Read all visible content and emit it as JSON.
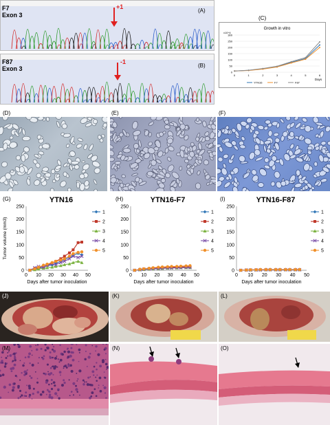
{
  "panels": {
    "A": {
      "label": "(A)",
      "sample": "F7",
      "exon": "Exon 3",
      "mutation": "+1"
    },
    "B": {
      "label": "(B)",
      "sample": "F87",
      "exon": "Exon 3",
      "mutation": "-1"
    },
    "C": {
      "label": "(C)"
    },
    "D": {
      "label": "(D)"
    },
    "E": {
      "label": "(E)"
    },
    "F": {
      "label": "(F)"
    },
    "G": {
      "label": "(G)"
    },
    "H": {
      "label": "(H)"
    },
    "I": {
      "label": "(I)"
    },
    "J": {
      "label": "(J)"
    },
    "K": {
      "label": "(K)"
    },
    "L": {
      "label": "(L)"
    },
    "M": {
      "label": "(M)"
    },
    "N": {
      "label": "(N)"
    },
    "O": {
      "label": "(O)"
    }
  },
  "colors": {
    "s1": "#2e75b6",
    "s2": "#c0392b",
    "s3": "#7cb342",
    "s4": "#7b4fa8",
    "s5": "#f0902a"
  },
  "chart_data": [
    {
      "type": "line",
      "title": "Growth in vitro",
      "unit_label": "x10^4",
      "xlabel": "Days",
      "x": [
        0,
        1,
        2,
        3,
        4,
        5,
        6
      ],
      "ylim": [
        0,
        300
      ],
      "yticks": [
        0,
        50,
        100,
        150,
        200,
        250,
        300
      ],
      "series": [
        {
          "name": "YTN16",
          "values": [
            10,
            15,
            28,
            45,
            80,
            110,
            220
          ]
        },
        {
          "name": "F7",
          "values": [
            10,
            14,
            25,
            42,
            75,
            105,
            200
          ]
        },
        {
          "name": "F87",
          "values": [
            10,
            16,
            30,
            48,
            85,
            118,
            245
          ]
        }
      ]
    },
    {
      "type": "line",
      "title": "YTN16",
      "ylabel": "Tumor volume (mm3)",
      "xlabel": "Days after tumor inoculation",
      "xlim": [
        0,
        50
      ],
      "ylim": [
        0,
        250
      ],
      "xticks": [
        0,
        10,
        20,
        30,
        40,
        50
      ],
      "yticks": [
        0,
        50,
        100,
        150,
        200,
        250
      ],
      "x": [
        3,
        7,
        10,
        14,
        17,
        21,
        24,
        28,
        31,
        35,
        38,
        42,
        45
      ],
      "series": [
        {
          "name": "1",
          "values": [
            0,
            5,
            8,
            12,
            18,
            20,
            28,
            35,
            42,
            50,
            58,
            66,
            60
          ]
        },
        {
          "name": "2",
          "values": [
            0,
            8,
            10,
            15,
            20,
            28,
            35,
            45,
            55,
            68,
            80,
            108,
            110
          ]
        },
        {
          "name": "3",
          "values": [
            0,
            2,
            5,
            8,
            10,
            12,
            15,
            18,
            22,
            25,
            30,
            35,
            30
          ]
        },
        {
          "name": "4",
          "values": [
            0,
            10,
            15,
            12,
            20,
            25,
            22,
            30,
            35,
            45,
            55,
            50,
            55
          ]
        },
        {
          "name": "5",
          "values": [
            0,
            6,
            12,
            20,
            24,
            30,
            35,
            40,
            45,
            55,
            65,
            70,
            72
          ]
        }
      ]
    },
    {
      "type": "line",
      "title": "YTN16-F7",
      "xlabel": "Days after tumor inoculation",
      "xlim": [
        0,
        50
      ],
      "ylim": [
        0,
        250
      ],
      "xticks": [
        0,
        10,
        20,
        30,
        40,
        50
      ],
      "yticks": [
        0,
        50,
        100,
        150,
        200,
        250
      ],
      "x": [
        3,
        7,
        10,
        14,
        17,
        21,
        24,
        28,
        31,
        35,
        38,
        42,
        45
      ],
      "series": [
        {
          "name": "1",
          "values": [
            0,
            2,
            3,
            5,
            6,
            7,
            8,
            9,
            10,
            10,
            11,
            12,
            12
          ]
        },
        {
          "name": "2",
          "values": [
            0,
            3,
            5,
            6,
            8,
            9,
            10,
            11,
            12,
            12,
            13,
            14,
            14
          ]
        },
        {
          "name": "3",
          "values": [
            0,
            2,
            3,
            4,
            5,
            6,
            7,
            8,
            9,
            9,
            10,
            10,
            10
          ]
        },
        {
          "name": "4",
          "values": [
            0,
            2,
            4,
            5,
            6,
            7,
            8,
            9,
            9,
            10,
            10,
            11,
            11
          ]
        },
        {
          "name": "5",
          "values": [
            0,
            4,
            6,
            8,
            10,
            12,
            13,
            14,
            15,
            15,
            16,
            17,
            18
          ]
        }
      ]
    },
    {
      "type": "line",
      "title": "YTN16-F87",
      "xlabel": "Days after tumor inoculation",
      "xlim": [
        0,
        50
      ],
      "ylim": [
        0,
        250
      ],
      "xticks": [
        0,
        10,
        20,
        30,
        40,
        50
      ],
      "yticks": [
        0,
        50,
        100,
        150,
        200,
        250
      ],
      "x": [
        3,
        7,
        10,
        14,
        17,
        21,
        24,
        28,
        31,
        35,
        38,
        42,
        45
      ],
      "series": [
        {
          "name": "1",
          "values": [
            0,
            1,
            2,
            2,
            2,
            3,
            3,
            3,
            3,
            3,
            3,
            3,
            3
          ]
        },
        {
          "name": "2",
          "values": [
            0,
            1,
            1,
            2,
            2,
            2,
            2,
            2,
            2,
            2,
            2,
            2,
            2
          ]
        },
        {
          "name": "3",
          "values": [
            0,
            1,
            1,
            1,
            2,
            2,
            2,
            2,
            2,
            2,
            2,
            2,
            2
          ]
        },
        {
          "name": "4",
          "values": [
            0,
            1,
            1,
            1,
            1,
            2,
            2,
            2,
            2,
            2,
            2,
            2,
            2
          ]
        },
        {
          "name": "5",
          "values": [
            0,
            1,
            2,
            2,
            3,
            3,
            3,
            3,
            3,
            3,
            3,
            3,
            3
          ]
        }
      ]
    }
  ]
}
